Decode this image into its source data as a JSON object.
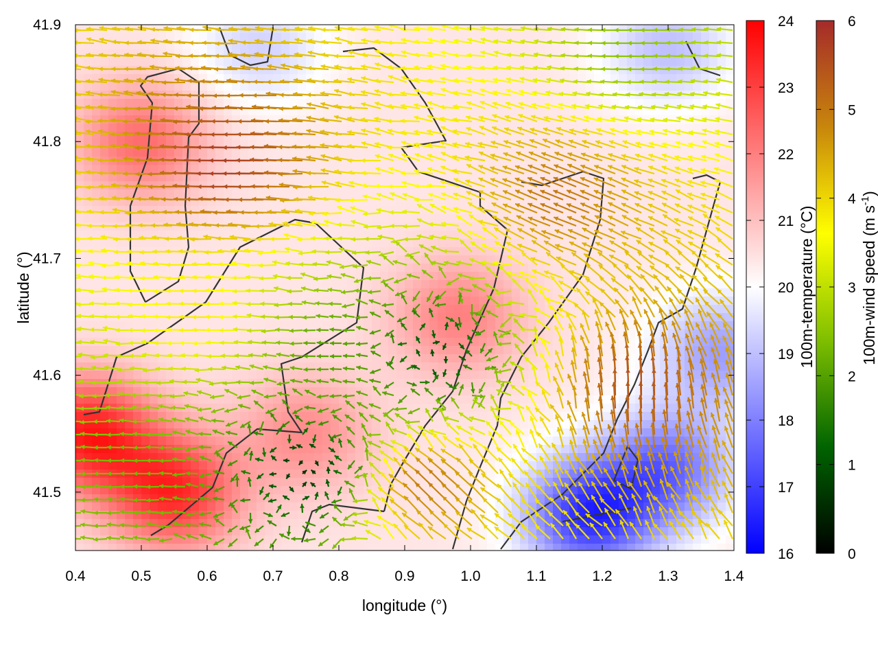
{
  "chart_data": {
    "type": "heatmap",
    "xlabel": "longitude (°)",
    "ylabel": "latitude (°)",
    "xlim": [
      0.4,
      1.4
    ],
    "ylim": [
      41.45,
      41.9
    ],
    "x_ticks": [
      "0.4",
      "0.5",
      "0.6",
      "0.7",
      "0.8",
      "0.9",
      "1.0",
      "1.1",
      "1.2",
      "1.3",
      "1.4"
    ],
    "y_ticks": [
      "41.5",
      "41.6",
      "41.7",
      "41.8",
      "41.9"
    ],
    "x_tick_values": [
      0.4,
      0.5,
      0.6,
      0.7,
      0.8,
      0.9,
      1.0,
      1.1,
      1.2,
      1.3,
      1.4
    ],
    "y_tick_values": [
      41.5,
      41.6,
      41.7,
      41.8,
      41.9
    ],
    "colorbars": [
      {
        "label": "100m-temperature (°C)",
        "range": [
          16,
          24
        ],
        "ticks": [
          "16",
          "17",
          "18",
          "19",
          "20",
          "21",
          "22",
          "23",
          "24"
        ],
        "tick_values": [
          16,
          17,
          18,
          19,
          20,
          21,
          22,
          23,
          24
        ],
        "colors": [
          "#0000ff",
          "#ffffff",
          "#ff0000"
        ]
      },
      {
        "label_main": "100m-wind speed (m s",
        "label_sup": "-1",
        "label_end": ")",
        "range": [
          0,
          6
        ],
        "ticks": [
          "0",
          "1",
          "2",
          "3",
          "4",
          "5",
          "6"
        ],
        "tick_values": [
          0,
          1,
          2,
          3,
          4,
          5,
          6
        ],
        "colors": [
          "#000000",
          "#006400",
          "#7fbf00",
          "#ffff00",
          "#c8860b",
          "#a52a2a"
        ]
      }
    ],
    "temperature_field": {
      "units": "°C",
      "features": [
        {
          "lon": 0.42,
          "lat": 41.55,
          "value": 23.5
        },
        {
          "lon": 0.55,
          "lat": 41.5,
          "value": 23.3
        },
        {
          "lon": 0.5,
          "lat": 41.8,
          "value": 22.3
        },
        {
          "lon": 0.98,
          "lat": 41.65,
          "value": 22.0
        },
        {
          "lon": 0.75,
          "lat": 41.55,
          "value": 21.8
        },
        {
          "lon": 1.18,
          "lat": 41.48,
          "value": 16.8
        },
        {
          "lon": 1.3,
          "lat": 41.52,
          "value": 17.8
        },
        {
          "lon": 1.38,
          "lat": 41.62,
          "value": 18.5
        },
        {
          "lon": 1.3,
          "lat": 41.88,
          "value": 19.0
        },
        {
          "lon": 0.68,
          "lat": 41.88,
          "value": 19.3
        }
      ]
    },
    "wind_field": {
      "units": "m s-1",
      "regions": [
        {
          "lon": 0.65,
          "lat": 41.78,
          "speed": 5.8,
          "direction": "westward"
        },
        {
          "lon": 0.6,
          "lat": 41.65,
          "speed": 3.8,
          "direction": "westward"
        },
        {
          "lon": 0.8,
          "lat": 41.62,
          "speed": 2.0,
          "direction": "westward"
        },
        {
          "lon": 0.95,
          "lat": 41.62,
          "speed": 0.8,
          "direction": "variable"
        },
        {
          "lon": 0.75,
          "lat": 41.52,
          "speed": 0.5,
          "direction": "variable"
        },
        {
          "lon": 1.25,
          "lat": 41.58,
          "speed": 5.5,
          "direction": "northward"
        },
        {
          "lon": 1.15,
          "lat": 41.75,
          "speed": 5.0,
          "direction": "west-northwestward"
        },
        {
          "lon": 1.25,
          "lat": 41.88,
          "speed": 2.5,
          "direction": "westward"
        },
        {
          "lon": 0.5,
          "lat": 41.52,
          "speed": 2.3,
          "direction": "westward"
        },
        {
          "lon": 0.95,
          "lat": 41.5,
          "speed": 5.0,
          "direction": "northwestward"
        }
      ]
    },
    "legend": "none",
    "grid": false
  }
}
